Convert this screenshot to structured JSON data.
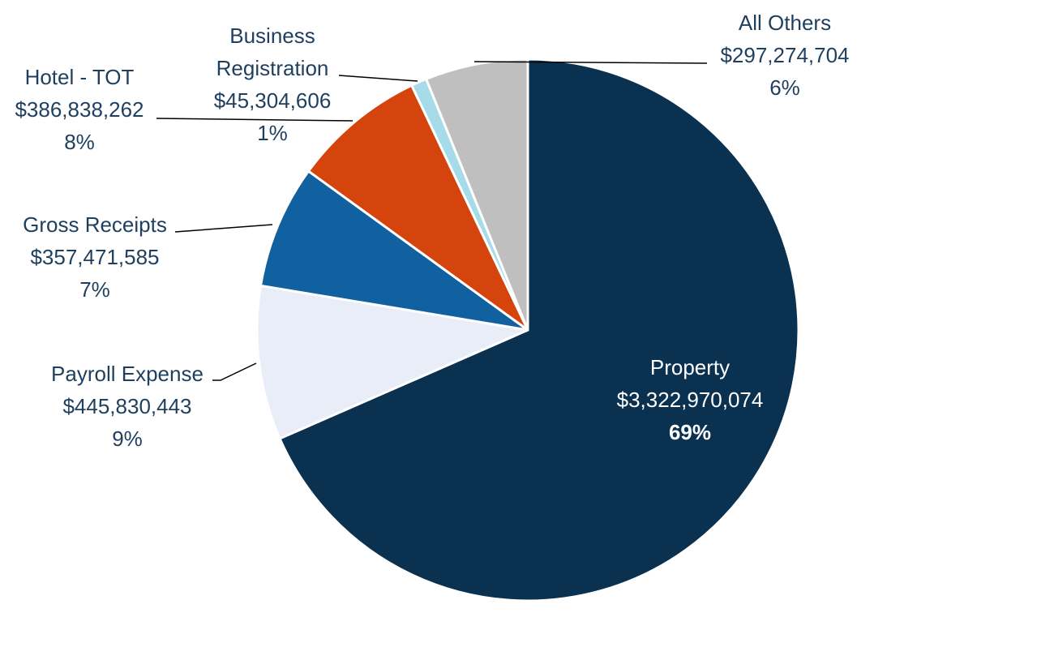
{
  "chart_data": {
    "type": "pie",
    "title": "",
    "start_angle_deg": 0,
    "direction": "clockwise",
    "series": [
      {
        "name": "Property",
        "value": 3322970074,
        "value_label": "$3,322,970,074",
        "percent_label": "69%",
        "color": "#0A3150",
        "label_color": "#FFFFFF"
      },
      {
        "name": "Payroll Expense",
        "value": 445830443,
        "value_label": "$445,830,443",
        "percent_label": "9%",
        "color": "#E8EDF7",
        "label_color": "#1F3F5F"
      },
      {
        "name": "Gross Receipts",
        "value": 357471585,
        "value_label": "$357,471,585",
        "percent_label": "7%",
        "color": "#1161A0",
        "label_color": "#1F3F5F"
      },
      {
        "name": "Hotel - TOT",
        "value": 386838262,
        "value_label": "$386,838,262",
        "percent_label": "8%",
        "color": "#D4440C",
        "label_color": "#1F3F5F"
      },
      {
        "name": "Business Registration",
        "value": 45304606,
        "value_label": "$45,304,606",
        "percent_label": "1%",
        "color": "#A6DCE9",
        "label_color": "#1F3F5F"
      },
      {
        "name": "All Others",
        "value": 297274704,
        "value_label": "$297,274,704",
        "percent_label": "6%",
        "color": "#BFBFBF",
        "label_color": "#1F3F5F"
      }
    ]
  }
}
